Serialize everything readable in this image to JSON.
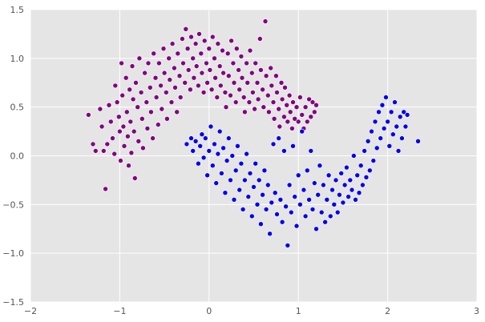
{
  "chart_data": {
    "type": "scatter",
    "title": "",
    "xlabel": "",
    "ylabel": "",
    "xlim": [
      -2,
      3
    ],
    "ylim": [
      -1.5,
      1.5
    ],
    "xticks": [
      -2,
      -1,
      0,
      1,
      2,
      3
    ],
    "yticks": [
      -1.5,
      -1.0,
      -0.5,
      0.0,
      0.5,
      1.0,
      1.5
    ],
    "x_tick_labels": [
      "−2",
      "−1",
      "0",
      "1",
      "2",
      "3"
    ],
    "y_tick_labels": [
      "−1.5",
      "−1.0",
      "−0.5",
      "0.0",
      "0.5",
      "1.0",
      "1.5"
    ],
    "grid": true,
    "legend": "none",
    "colors": {
      "background": "#e5e5e5",
      "grid": "#ffffff",
      "series_0": "#800080",
      "series_1": "#0000ee",
      "marker_edge": "#ffffff"
    },
    "series": [
      {
        "points": [
          [
            -1.35,
            0.42
          ],
          [
            -1.3,
            0.12
          ],
          [
            -1.27,
            0.05
          ],
          [
            -1.22,
            0.48
          ],
          [
            -1.2,
            0.3
          ],
          [
            -1.18,
            0.05
          ],
          [
            -1.16,
            -0.34
          ],
          [
            -1.14,
            0.12
          ],
          [
            -1.12,
            0.52
          ],
          [
            -1.1,
            0.35
          ],
          [
            -1.08,
            0.18
          ],
          [
            -1.06,
            0.02
          ],
          [
            -1.05,
            0.72
          ],
          [
            -1.03,
            0.55
          ],
          [
            -1.01,
            0.4
          ],
          [
            -1.0,
            0.25
          ],
          [
            -0.99,
            -0.05
          ],
          [
            -0.98,
            0.95
          ],
          [
            -0.97,
            0.62
          ],
          [
            -0.96,
            0.3
          ],
          [
            -0.95,
            0.1
          ],
          [
            -0.93,
            0.8
          ],
          [
            -0.92,
            0.45
          ],
          [
            -0.91,
            0.2
          ],
          [
            -0.9,
            -0.1
          ],
          [
            -0.89,
            0.68
          ],
          [
            -0.88,
            0.35
          ],
          [
            -0.87,
            0.03
          ],
          [
            -0.86,
            0.92
          ],
          [
            -0.85,
            0.58
          ],
          [
            -0.84,
            0.25
          ],
          [
            -0.83,
            -0.23
          ],
          [
            -0.82,
            0.75
          ],
          [
            -0.8,
            0.5
          ],
          [
            -0.79,
            0.15
          ],
          [
            -0.78,
            1.0
          ],
          [
            -0.76,
            0.65
          ],
          [
            -0.75,
            0.38
          ],
          [
            -0.74,
            0.08
          ],
          [
            -0.72,
            0.85
          ],
          [
            -0.7,
            0.55
          ],
          [
            -0.69,
            0.28
          ],
          [
            -0.68,
            0.95
          ],
          [
            -0.66,
            0.7
          ],
          [
            -0.65,
            0.45
          ],
          [
            -0.63,
            0.18
          ],
          [
            -0.62,
            1.05
          ],
          [
            -0.6,
            0.8
          ],
          [
            -0.59,
            0.6
          ],
          [
            -0.57,
            0.32
          ],
          [
            -0.56,
            0.95
          ],
          [
            -0.54,
            0.72
          ],
          [
            -0.53,
            0.48
          ],
          [
            -0.51,
            1.1
          ],
          [
            -0.5,
            0.85
          ],
          [
            -0.48,
            0.65
          ],
          [
            -0.47,
            0.38
          ],
          [
            -0.45,
            1.0
          ],
          [
            -0.44,
            0.78
          ],
          [
            -0.42,
            0.55
          ],
          [
            -0.41,
            1.15
          ],
          [
            -0.39,
            0.9
          ],
          [
            -0.38,
            0.7
          ],
          [
            -0.36,
            0.45
          ],
          [
            -0.35,
            1.05
          ],
          [
            -0.33,
            0.82
          ],
          [
            -0.32,
            0.6
          ],
          [
            -0.3,
            1.2
          ],
          [
            -0.29,
            0.95
          ],
          [
            -0.27,
            0.75
          ],
          [
            -0.26,
            1.3
          ],
          [
            -0.24,
            1.1
          ],
          [
            -0.23,
            0.88
          ],
          [
            -0.21,
            0.68
          ],
          [
            -0.2,
            1.22
          ],
          [
            -0.18,
            1.0
          ],
          [
            -0.17,
            0.8
          ],
          [
            -0.15,
            1.15
          ],
          [
            -0.14,
            0.92
          ],
          [
            -0.12,
            0.72
          ],
          [
            -0.11,
            1.25
          ],
          [
            -0.09,
            1.05
          ],
          [
            -0.08,
            0.85
          ],
          [
            -0.06,
            0.65
          ],
          [
            -0.05,
            1.18
          ],
          [
            -0.03,
            0.95
          ],
          [
            -0.02,
            0.75
          ],
          [
            0.0,
            1.1
          ],
          [
            0.01,
            0.88
          ],
          [
            0.03,
            0.68
          ],
          [
            0.04,
            1.22
          ],
          [
            0.06,
            1.0
          ],
          [
            0.07,
            0.8
          ],
          [
            0.09,
            0.6
          ],
          [
            0.1,
            1.15
          ],
          [
            0.12,
            0.92
          ],
          [
            0.13,
            0.72
          ],
          [
            0.15,
            1.08
          ],
          [
            0.16,
            0.85
          ],
          [
            0.18,
            0.65
          ],
          [
            0.19,
            0.5
          ],
          [
            0.21,
            1.05
          ],
          [
            0.22,
            0.82
          ],
          [
            0.24,
            0.62
          ],
          [
            0.25,
            1.18
          ],
          [
            0.27,
            0.95
          ],
          [
            0.28,
            0.75
          ],
          [
            0.3,
            0.55
          ],
          [
            0.31,
            1.1
          ],
          [
            0.33,
            0.88
          ],
          [
            0.34,
            0.68
          ],
          [
            0.36,
            1.02
          ],
          [
            0.37,
            0.8
          ],
          [
            0.39,
            0.6
          ],
          [
            0.4,
            0.45
          ],
          [
            0.42,
            0.95
          ],
          [
            0.43,
            0.75
          ],
          [
            0.45,
            0.55
          ],
          [
            0.46,
            1.08
          ],
          [
            0.48,
            0.85
          ],
          [
            0.49,
            0.65
          ],
          [
            0.51,
            0.48
          ],
          [
            0.52,
            0.95
          ],
          [
            0.54,
            0.75
          ],
          [
            0.55,
            0.58
          ],
          [
            0.57,
            1.2
          ],
          [
            0.58,
            0.88
          ],
          [
            0.6,
            0.68
          ],
          [
            0.61,
            0.5
          ],
          [
            0.63,
            1.38
          ],
          [
            0.64,
            0.82
          ],
          [
            0.66,
            0.62
          ],
          [
            0.67,
            0.45
          ],
          [
            0.69,
            0.9
          ],
          [
            0.7,
            0.72
          ],
          [
            0.72,
            0.55
          ],
          [
            0.73,
            0.38
          ],
          [
            0.75,
            0.82
          ],
          [
            0.76,
            0.65
          ],
          [
            0.78,
            0.48
          ],
          [
            0.79,
            0.3
          ],
          [
            0.81,
            0.75
          ],
          [
            0.82,
            0.58
          ],
          [
            0.84,
            0.4
          ],
          [
            0.85,
            0.7
          ],
          [
            0.87,
            0.52
          ],
          [
            0.88,
            0.35
          ],
          [
            0.9,
            0.62
          ],
          [
            0.91,
            0.45
          ],
          [
            0.93,
            0.28
          ],
          [
            0.94,
            0.55
          ],
          [
            0.96,
            0.38
          ],
          [
            0.98,
            0.5
          ],
          [
            1.0,
            0.35
          ],
          [
            1.02,
            0.6
          ],
          [
            1.04,
            0.42
          ],
          [
            1.06,
            0.28
          ],
          [
            1.08,
            0.5
          ],
          [
            1.1,
            0.35
          ],
          [
            1.12,
            0.58
          ],
          [
            1.14,
            0.4
          ],
          [
            1.16,
            0.55
          ],
          [
            1.18,
            0.45
          ],
          [
            1.2,
            0.52
          ]
        ]
      },
      {
        "points": [
          [
            -0.25,
            0.12
          ],
          [
            -0.2,
            0.18
          ],
          [
            -0.18,
            0.05
          ],
          [
            -0.15,
            0.15
          ],
          [
            -0.12,
            -0.08
          ],
          [
            -0.1,
            0.1
          ],
          [
            -0.08,
            0.22
          ],
          [
            -0.06,
            -0.02
          ],
          [
            -0.04,
            0.18
          ],
          [
            -0.02,
            -0.2
          ],
          [
            0.0,
            0.05
          ],
          [
            0.02,
            0.3
          ],
          [
            0.04,
            -0.1
          ],
          [
            0.06,
            0.12
          ],
          [
            0.08,
            -0.28
          ],
          [
            0.1,
            0.02
          ],
          [
            0.12,
            0.25
          ],
          [
            0.14,
            -0.18
          ],
          [
            0.16,
            0.08
          ],
          [
            0.18,
            -0.38
          ],
          [
            0.2,
            -0.05
          ],
          [
            0.22,
            0.18
          ],
          [
            0.24,
            -0.25
          ],
          [
            0.26,
            0.0
          ],
          [
            0.28,
            -0.45
          ],
          [
            0.3,
            -0.15
          ],
          [
            0.32,
            0.1
          ],
          [
            0.34,
            -0.35
          ],
          [
            0.36,
            -0.08
          ],
          [
            0.38,
            -0.55
          ],
          [
            0.4,
            -0.25
          ],
          [
            0.42,
            0.02
          ],
          [
            0.44,
            -0.42
          ],
          [
            0.46,
            -0.18
          ],
          [
            0.48,
            -0.62
          ],
          [
            0.5,
            -0.32
          ],
          [
            0.52,
            -0.08
          ],
          [
            0.54,
            -0.5
          ],
          [
            0.56,
            -0.25
          ],
          [
            0.58,
            -0.7
          ],
          [
            0.6,
            -0.4
          ],
          [
            0.62,
            -0.15
          ],
          [
            0.64,
            -0.55
          ],
          [
            0.66,
            -0.3
          ],
          [
            0.68,
            -0.8
          ],
          [
            0.7,
            -0.48
          ],
          [
            0.72,
            0.12
          ],
          [
            0.74,
            -0.38
          ],
          [
            0.76,
            -0.6
          ],
          [
            0.78,
            0.18
          ],
          [
            0.8,
            -0.45
          ],
          [
            0.82,
            -0.68
          ],
          [
            0.84,
            0.05
          ],
          [
            0.86,
            -0.52
          ],
          [
            0.88,
            -0.92
          ],
          [
            0.9,
            -0.3
          ],
          [
            0.92,
            -0.58
          ],
          [
            0.94,
            0.1
          ],
          [
            0.96,
            -0.42
          ],
          [
            0.98,
            -0.72
          ],
          [
            1.0,
            -0.2
          ],
          [
            1.02,
            -0.5
          ],
          [
            1.04,
            0.25
          ],
          [
            1.06,
            -0.35
          ],
          [
            1.08,
            -0.62
          ],
          [
            1.1,
            -0.15
          ],
          [
            1.12,
            -0.45
          ],
          [
            1.14,
            0.05
          ],
          [
            1.16,
            -0.55
          ],
          [
            1.18,
            -0.28
          ],
          [
            1.2,
            -0.75
          ],
          [
            1.22,
            -0.4
          ],
          [
            1.24,
            -0.1
          ],
          [
            1.26,
            -0.58
          ],
          [
            1.28,
            -0.3
          ],
          [
            1.3,
            -0.68
          ],
          [
            1.32,
            -0.45
          ],
          [
            1.34,
            -0.2
          ],
          [
            1.36,
            -0.62
          ],
          [
            1.38,
            -0.35
          ],
          [
            1.4,
            -0.5
          ],
          [
            1.42,
            -0.25
          ],
          [
            1.44,
            -0.58
          ],
          [
            1.46,
            -0.4
          ],
          [
            1.48,
            -0.18
          ],
          [
            1.5,
            -0.48
          ],
          [
            1.52,
            -0.3
          ],
          [
            1.54,
            -0.12
          ],
          [
            1.56,
            -0.42
          ],
          [
            1.58,
            -0.25
          ],
          [
            1.6,
            -0.35
          ],
          [
            1.62,
            0.0
          ],
          [
            1.64,
            -0.45
          ],
          [
            1.66,
            -0.2
          ],
          [
            1.68,
            -0.38
          ],
          [
            1.7,
            -0.1
          ],
          [
            1.72,
            -0.3
          ],
          [
            1.74,
            0.05
          ],
          [
            1.76,
            -0.22
          ],
          [
            1.78,
            0.15
          ],
          [
            1.8,
            -0.15
          ],
          [
            1.82,
            0.25
          ],
          [
            1.84,
            -0.05
          ],
          [
            1.86,
            0.35
          ],
          [
            1.88,
            0.08
          ],
          [
            1.9,
            0.45
          ],
          [
            1.92,
            0.18
          ],
          [
            1.94,
            0.52
          ],
          [
            1.96,
            0.28
          ],
          [
            1.98,
            0.6
          ],
          [
            2.0,
            0.35
          ],
          [
            2.02,
            0.1
          ],
          [
            2.04,
            0.45
          ],
          [
            2.06,
            0.22
          ],
          [
            2.08,
            0.55
          ],
          [
            2.1,
            0.3
          ],
          [
            2.12,
            0.05
          ],
          [
            2.14,
            0.4
          ],
          [
            2.16,
            0.18
          ],
          [
            2.18,
            0.45
          ],
          [
            2.2,
            0.3
          ],
          [
            2.22,
            0.42
          ],
          [
            2.34,
            0.15
          ]
        ]
      }
    ]
  }
}
